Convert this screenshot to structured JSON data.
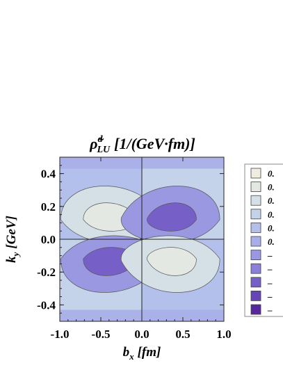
{
  "chart_data": {
    "type": "heatmap",
    "title": {
      "symbol": "ρ̃",
      "superscript": "d",
      "subscript": "LU",
      "units": "[1/(GeV·fm)]"
    },
    "xlabel": {
      "symbol": "b",
      "subscript": "x",
      "units": "[fm]"
    },
    "ylabel": {
      "symbol": "k",
      "subscript": "y",
      "units": "[GeV]"
    },
    "xlim": [
      -1.0,
      1.0
    ],
    "ylim": [
      -0.5,
      0.5
    ],
    "x_ticks": [
      "-1.0",
      "-0.5",
      "0.0",
      "0.5",
      "1.0"
    ],
    "x_tick_values": [
      -1.0,
      -0.5,
      0.0,
      0.5,
      1.0
    ],
    "y_ticks": [
      "0.4",
      "0.2",
      "0.0",
      "-0.2",
      "-0.4"
    ],
    "y_tick_values": [
      0.4,
      0.2,
      0.0,
      -0.2,
      -0.4
    ],
    "grid": false,
    "zero_lines": true,
    "legend_position": "right",
    "legend_labels": [
      "0.",
      "0.",
      "0.",
      "0.",
      "0.",
      "0.",
      "–",
      "–",
      "–",
      "–",
      "–"
    ],
    "legend_colors": [
      "#f0ece0",
      "#e4e8e2",
      "#d4e0e6",
      "#c4d2ea",
      "#b4c0ec",
      "#a8aee8",
      "#9a98e0",
      "#8a80d8",
      "#7660c8",
      "#6646b6",
      "#56289c"
    ],
    "contours": [
      {
        "region": "upper-left",
        "center_x": -0.4,
        "center_y": 0.12,
        "levels": [
          {
            "color": "#d4e0e6",
            "rx": 0.62,
            "ry": 0.24
          },
          {
            "color": "#e4e8e2",
            "rx": 0.33,
            "ry": 0.12
          }
        ]
      },
      {
        "region": "upper-right",
        "center_x": 0.38,
        "center_y": 0.12,
        "levels": [
          {
            "color": "#9a98e0",
            "rx": 0.6,
            "ry": 0.24
          },
          {
            "color": "#7660c8",
            "rx": 0.3,
            "ry": 0.12
          }
        ]
      },
      {
        "region": "lower-left",
        "center_x": -0.4,
        "center_y": -0.12,
        "levels": [
          {
            "color": "#9a98e0",
            "rx": 0.62,
            "ry": 0.24
          },
          {
            "color": "#7660c8",
            "rx": 0.33,
            "ry": 0.12
          }
        ]
      },
      {
        "region": "lower-right",
        "center_x": 0.38,
        "center_y": -0.12,
        "levels": [
          {
            "color": "#d4e0e6",
            "rx": 0.6,
            "ry": 0.24
          },
          {
            "color": "#e4e8e2",
            "rx": 0.3,
            "ry": 0.12
          }
        ]
      }
    ],
    "background_levels": {
      "left_upper": "#b4c0ec",
      "right_upper": "#c4d2ea",
      "left_lower": "#c4d2ea",
      "right_lower": "#b4c0ec"
    }
  }
}
